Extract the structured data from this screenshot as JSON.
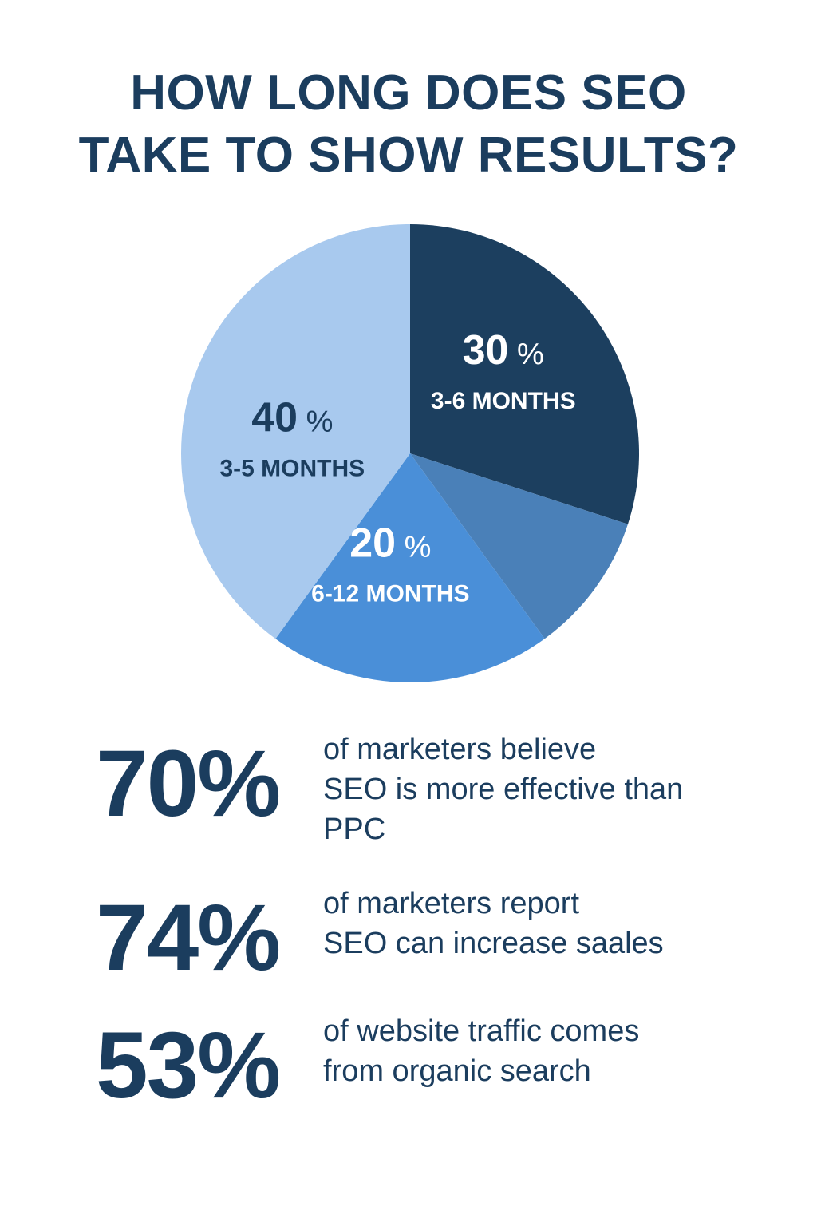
{
  "title": {
    "line1": "HOW LONG DOES SEO",
    "line2": "TAKE TO SHOW RESULTS?"
  },
  "colors": {
    "text": "#1b3d5e",
    "slice_3_6": "#1c3f5f",
    "slice_unlabeled": "#4a80b8",
    "slice_6_12": "#4a8fd8",
    "slice_3_5": "#a8c9ee"
  },
  "chart_data": {
    "type": "pie",
    "start_angle_deg": 0,
    "slices": [
      {
        "label": "3-6 MONTHS",
        "value": 30,
        "percent_label": "30",
        "pct_sign": "%",
        "color": "#1c3f5f",
        "text_color": "#ffffff"
      },
      {
        "label": "",
        "value": 10,
        "percent_label": "",
        "pct_sign": "",
        "color": "#4a80b8",
        "text_color": "#ffffff"
      },
      {
        "label": "6-12 MONTHS",
        "value": 20,
        "percent_label": "20",
        "pct_sign": "%",
        "color": "#4a8fd8",
        "text_color": "#ffffff"
      },
      {
        "label": "3-5 MONTHS",
        "value": 40,
        "percent_label": "40",
        "pct_sign": "%",
        "color": "#a8c9ee",
        "text_color": "#1b3d5e"
      }
    ]
  },
  "stats": [
    {
      "value": "70%",
      "lines": [
        "of marketers believe",
        "SEO is more effective than",
        "PPC"
      ]
    },
    {
      "value": "74%",
      "lines": [
        "of marketers report",
        "SEO can increase saales"
      ]
    },
    {
      "value": "53%",
      "lines": [
        "of website traffic comes",
        "from organic search"
      ]
    }
  ]
}
